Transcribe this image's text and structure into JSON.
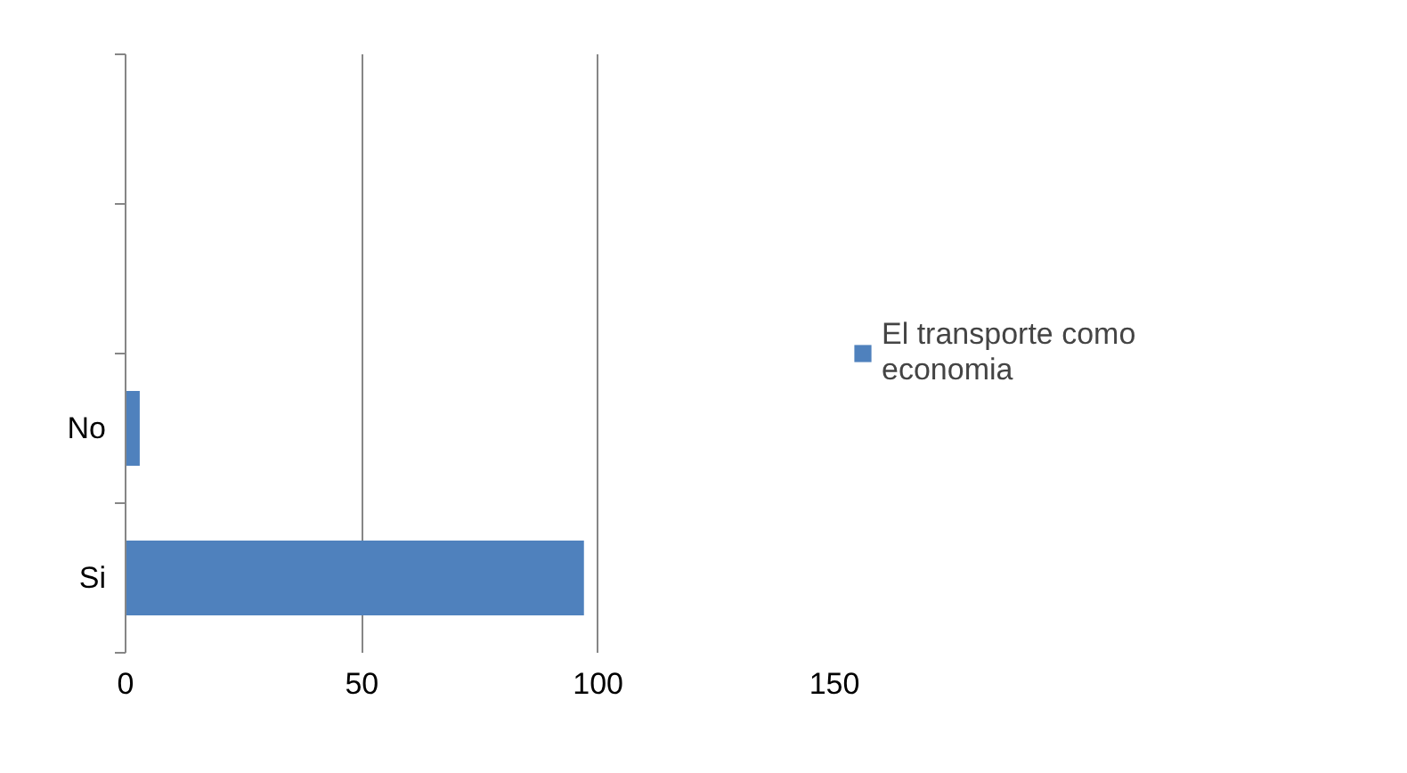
{
  "chart_data": {
    "type": "bar",
    "orientation": "horizontal",
    "categories": [
      null,
      null,
      "No",
      "Si"
    ],
    "series": [
      {
        "name": "El transporte como economia",
        "color": "#4f81bd",
        "values": [
          null,
          null,
          3,
          97
        ]
      }
    ],
    "xlim": [
      0,
      150
    ],
    "xticks": [
      0,
      50,
      100,
      150
    ],
    "grid": "x",
    "legend": "right"
  }
}
